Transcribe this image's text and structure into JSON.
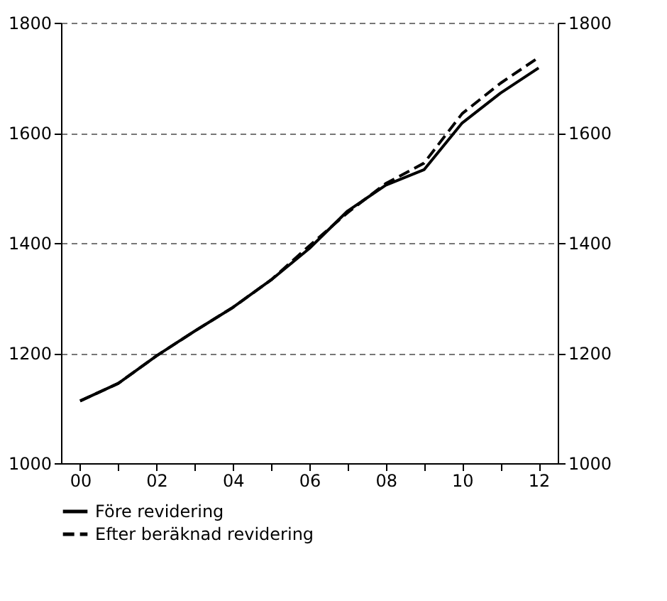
{
  "chart_data": {
    "type": "line",
    "x": [
      2000,
      2001,
      2002,
      2003,
      2004,
      2005,
      2006,
      2007,
      2008,
      2009,
      2010,
      2011,
      2012
    ],
    "series": [
      {
        "name": "Före revidering",
        "color": "#000000",
        "line_style": "solid",
        "values": [
          1113,
          1145,
          1195,
          1240,
          1283,
          1333,
          1390,
          1458,
          1505,
          1533,
          1618,
          1672,
          1718
        ]
      },
      {
        "name": "Efter beräknad revidering",
        "color": "#000000",
        "line_style": "dashed",
        "values": [
          1113,
          1145,
          1195,
          1240,
          1283,
          1333,
          1395,
          1455,
          1508,
          1545,
          1635,
          1690,
          1737
        ]
      }
    ],
    "xlim": [
      1999.5,
      2012.5
    ],
    "xticks": [
      {
        "value": 2000,
        "label": "00"
      },
      {
        "value": 2001,
        "label": null
      },
      {
        "value": 2002,
        "label": "02"
      },
      {
        "value": 2003,
        "label": null
      },
      {
        "value": 2004,
        "label": "04"
      },
      {
        "value": 2005,
        "label": null
      },
      {
        "value": 2006,
        "label": "06"
      },
      {
        "value": 2007,
        "label": null
      },
      {
        "value": 2008,
        "label": "08"
      },
      {
        "value": 2009,
        "label": null
      },
      {
        "value": 2010,
        "label": "10"
      },
      {
        "value": 2011,
        "label": null
      },
      {
        "value": 2012,
        "label": "12"
      }
    ],
    "ylim": [
      1000,
      1800
    ],
    "yticks": [
      1000,
      1200,
      1400,
      1600,
      1800
    ],
    "y2lim": [
      1000,
      1800
    ],
    "y2ticks": [
      1000,
      1200,
      1400,
      1600,
      1800
    ],
    "grid": "y",
    "legend": "bottom"
  }
}
